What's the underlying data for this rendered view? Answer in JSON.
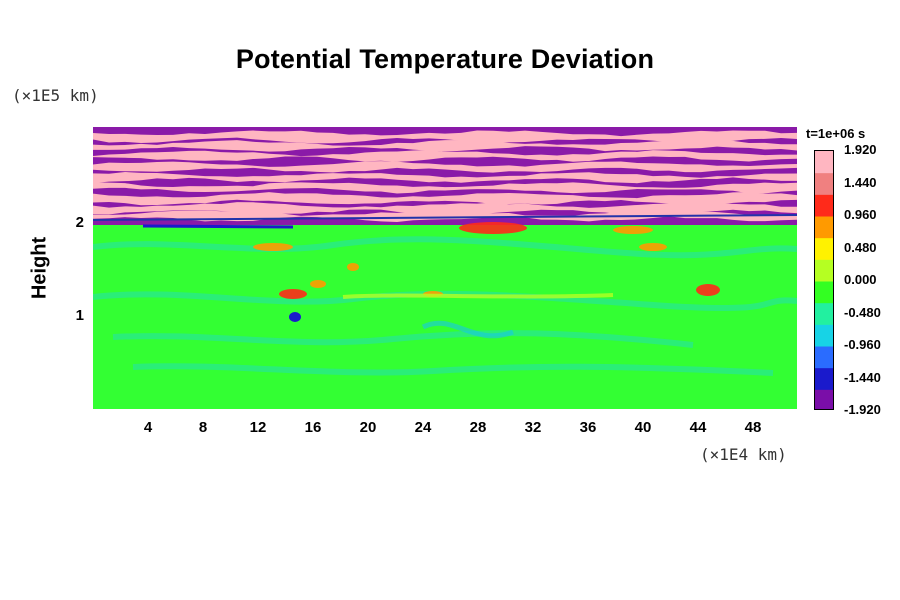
{
  "chart_data": {
    "type": "heatmap",
    "title": "Potential Temperature Deviation",
    "xlabel": "",
    "ylabel": "Height",
    "x_unit": "(×1E4 km)",
    "y_unit": "(×1E5 km)",
    "x_ticks": [
      4,
      8,
      12,
      16,
      20,
      24,
      28,
      32,
      36,
      40,
      44,
      48
    ],
    "y_ticks": [
      1,
      2
    ],
    "xlim": [
      0,
      51.2
    ],
    "ylim": [
      0,
      3.05
    ],
    "time_label": "t=1e+06 s",
    "colorbar": {
      "ticks": [
        "1.920",
        "1.440",
        "0.960",
        "0.480",
        "0.000",
        "-0.480",
        "-0.960",
        "-1.440",
        "-1.920"
      ],
      "min": -1.92,
      "max": 1.92,
      "colors": [
        "#7a0ea8",
        "#1a1acc",
        "#2a6cff",
        "#17d3e6",
        "#22f0a0",
        "#33ff22",
        "#b5ff22",
        "#fff200",
        "#ff9a00",
        "#ff2a1a",
        "#f08080",
        "#ffb6c1"
      ]
    },
    "regions": {
      "lower_background": "#33ff33",
      "upper_bands": [
        "#ffb6c1",
        "#8a1aa8"
      ]
    }
  }
}
